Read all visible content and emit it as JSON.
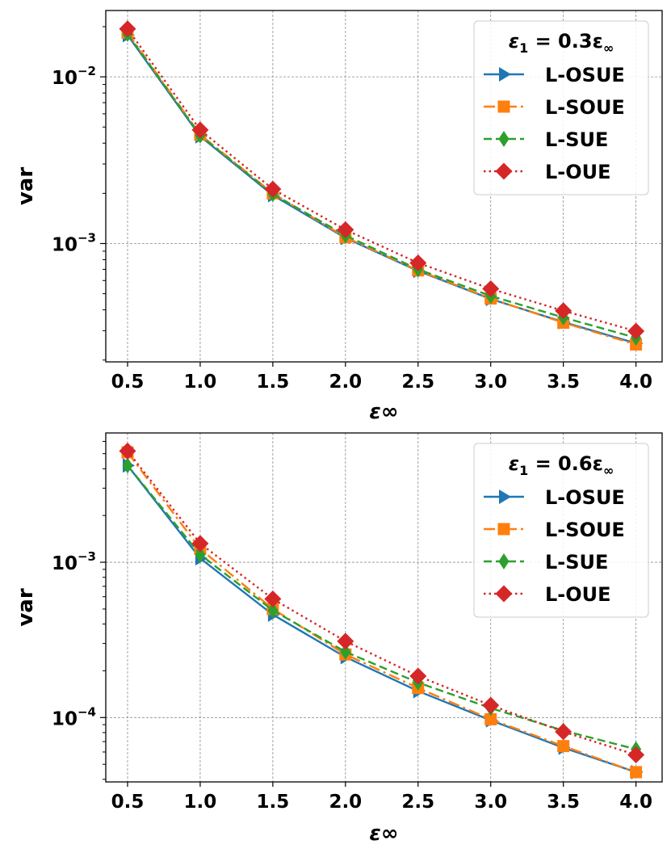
{
  "chart_data": [
    {
      "type": "line",
      "xlabel": "ε∞",
      "ylabel": "var",
      "yscale": "log",
      "ylim": [
        0.000195,
        0.025
      ],
      "xlim": [
        0.35,
        4.18
      ],
      "x_ticks": [
        0.5,
        1.0,
        1.5,
        2.0,
        2.5,
        3.0,
        3.5,
        4.0
      ],
      "x_tick_labels": [
        "0.5",
        "1.0",
        "1.5",
        "2.0",
        "2.5",
        "3.0",
        "3.5",
        "4.0"
      ],
      "y_ticks": [
        0.001,
        0.01
      ],
      "y_tick_labels": [
        {
          "base": "10",
          "exp": "−3"
        },
        {
          "base": "10",
          "exp": "−2"
        }
      ],
      "grid": true,
      "legend": {
        "placement": "top-right",
        "title": {
          "main": "ε",
          "sub": "1",
          "rest": " = 0.3ε",
          "sub2": "∞"
        }
      },
      "series": [
        {
          "name": "L-OSUE",
          "color": "#1f77b4",
          "dash": "solid",
          "marker": "triangle-right",
          "x": [
            0.5,
            1.0,
            1.5,
            2.0,
            2.5,
            3.0,
            3.5,
            4.0
          ],
          "values": [
            0.0178,
            0.0044,
            0.00195,
            0.00108,
            0.000685,
            0.000465,
            0.000338,
            0.000252
          ]
        },
        {
          "name": "L-SOUE",
          "color": "#ff7f0e",
          "dash": "dashdot",
          "marker": "square",
          "x": [
            0.5,
            1.0,
            1.5,
            2.0,
            2.5,
            3.0,
            3.5,
            4.0
          ],
          "values": [
            0.0184,
            0.0045,
            0.002,
            0.00109,
            0.00069,
            0.000468,
            0.000335,
            0.000248
          ]
        },
        {
          "name": "L-SUE",
          "color": "#2ca02c",
          "dash": "dashed",
          "marker": "diamond-thin",
          "x": [
            0.5,
            1.0,
            1.5,
            2.0,
            2.5,
            3.0,
            3.5,
            4.0
          ],
          "values": [
            0.0181,
            0.00445,
            0.00198,
            0.00112,
            0.0007,
            0.000485,
            0.00036,
            0.000272
          ]
        },
        {
          "name": "L-OUE",
          "color": "#d62728",
          "dash": "dotted",
          "marker": "diamond",
          "x": [
            0.5,
            1.0,
            1.5,
            2.0,
            2.5,
            3.0,
            3.5,
            4.0
          ],
          "values": [
            0.0194,
            0.0048,
            0.00212,
            0.00121,
            0.000765,
            0.000535,
            0.000395,
            0.000298
          ]
        }
      ]
    },
    {
      "type": "line",
      "xlabel": "ε∞",
      "ylabel": "var",
      "yscale": "log",
      "ylim": [
        3.85e-05,
        0.0068
      ],
      "xlim": [
        0.35,
        4.18
      ],
      "x_ticks": [
        0.5,
        1.0,
        1.5,
        2.0,
        2.5,
        3.0,
        3.5,
        4.0
      ],
      "x_tick_labels": [
        "0.5",
        "1.0",
        "1.5",
        "2.0",
        "2.5",
        "3.0",
        "3.5",
        "4.0"
      ],
      "y_ticks": [
        0.0001,
        0.001
      ],
      "y_tick_labels": [
        {
          "base": "10",
          "exp": "−4"
        },
        {
          "base": "10",
          "exp": "−3"
        }
      ],
      "grid": true,
      "legend": {
        "placement": "top-right",
        "title": {
          "main": "ε",
          "sub": "1",
          "rest": " = 0.6ε",
          "sub2": "∞"
        }
      },
      "series": [
        {
          "name": "L-OSUE",
          "color": "#1f77b4",
          "dash": "solid",
          "marker": "triangle-right",
          "x": [
            0.5,
            1.0,
            1.5,
            2.0,
            2.5,
            3.0,
            3.5,
            4.0
          ],
          "values": [
            0.0042,
            0.00106,
            0.00046,
            0.000245,
            0.000148,
            9.6e-05,
            6.4e-05,
            4.45e-05
          ]
        },
        {
          "name": "L-SOUE",
          "color": "#ff7f0e",
          "dash": "dashdot",
          "marker": "square",
          "x": [
            0.5,
            1.0,
            1.5,
            2.0,
            2.5,
            3.0,
            3.5,
            4.0
          ],
          "values": [
            0.0051,
            0.00122,
            0.0005,
            0.000255,
            0.000155,
            9.75e-05,
            6.55e-05,
            4.45e-05
          ]
        },
        {
          "name": "L-SUE",
          "color": "#2ca02c",
          "dash": "dashed",
          "marker": "diamond-thin",
          "x": [
            0.5,
            1.0,
            1.5,
            2.0,
            2.5,
            3.0,
            3.5,
            4.0
          ],
          "values": [
            0.0042,
            0.00112,
            0.00049,
            0.000265,
            0.000168,
            0.000115,
            8.25e-05,
            6.25e-05
          ]
        },
        {
          "name": "L-OUE",
          "color": "#d62728",
          "dash": "dotted",
          "marker": "diamond",
          "x": [
            0.5,
            1.0,
            1.5,
            2.0,
            2.5,
            3.0,
            3.5,
            4.0
          ],
          "values": [
            0.0052,
            0.00132,
            0.00058,
            0.00031,
            0.000185,
            0.00012,
            8.1e-05,
            5.75e-05
          ]
        }
      ]
    }
  ]
}
